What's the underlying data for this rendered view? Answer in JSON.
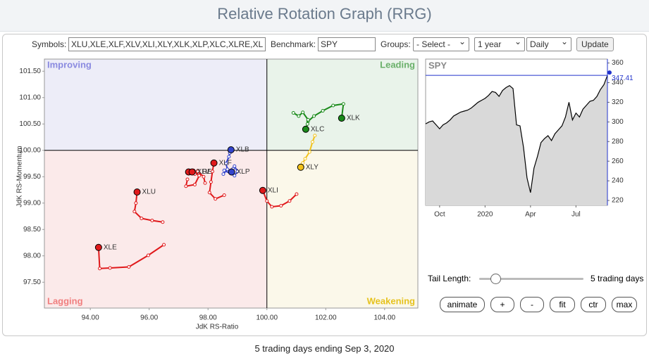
{
  "header": {
    "title": "Relative Rotation Graph (RRG)"
  },
  "toolbar": {
    "symbols_label": "Symbols:",
    "symbols": "XLU,XLE,XLF,XLV,XLI,XLY,XLK,XLP,XLC,XLRE,XL",
    "benchmark_label": "Benchmark:",
    "benchmark": "SPY",
    "groups_label": "Groups:",
    "groups": "- Select -",
    "period": "1 year",
    "interval": "Daily",
    "update": "Update"
  },
  "chart_data": [
    {
      "type": "rrg",
      "xlabel": "JdK RS-Ratio",
      "ylabel": "JdK RS-Momentum",
      "xlim": [
        92.44,
        105.13
      ],
      "ylim": [
        97.01,
        101.73
      ],
      "center": [
        100,
        100
      ],
      "xticks": [
        {
          "value": 94,
          "label": "94.00"
        },
        {
          "value": 96,
          "label": "96.00"
        },
        {
          "value": 98,
          "label": "98.00"
        },
        {
          "value": 100,
          "label": "100.00"
        },
        {
          "value": 102,
          "label": "102.00"
        },
        {
          "value": 104,
          "label": "104.00"
        }
      ],
      "yticks": [
        {
          "value": 97.5,
          "label": "97.50"
        },
        {
          "value": 98,
          "label": "98.00"
        },
        {
          "value": 98.5,
          "label": "98.50"
        },
        {
          "value": 99,
          "label": "99.00"
        },
        {
          "value": 99.5,
          "label": "99.50"
        },
        {
          "value": 100,
          "label": "100.00"
        },
        {
          "value": 100.5,
          "label": "100.50"
        },
        {
          "value": 101,
          "label": "101.00"
        },
        {
          "value": 101.5,
          "label": "101.50"
        }
      ],
      "quadrant_labels": [
        "Improving",
        "Leading",
        "Lagging",
        "Weakening"
      ],
      "quadrant_colors": [
        "#ededf8",
        "#e9f3ea",
        "#fbeaea",
        "#fbf8ea"
      ],
      "quadrant_label_colors": [
        "#8a8ae0",
        "#6ab06a",
        "#f07f7f",
        "#e6c21e"
      ],
      "series": [
        {
          "name": "XLK",
          "color": "#1a8a1a",
          "x": [
            101.4,
            101.6,
            101.9,
            102.25,
            102.6,
            102.54
          ],
          "values": [
            100.55,
            100.65,
            100.75,
            100.85,
            100.88,
            100.61
          ]
        },
        {
          "name": "XLC",
          "color": "#1a8a1a",
          "x": [
            100.9,
            101.08,
            101.22,
            101.4,
            101.38,
            101.32
          ],
          "values": [
            100.71,
            100.65,
            100.72,
            100.58,
            100.5,
            100.4
          ]
        },
        {
          "name": "XLY",
          "color": "#f2c21b",
          "x": [
            101.63,
            101.55,
            101.45,
            101.3,
            101.22,
            101.15
          ],
          "values": [
            100.28,
            100.16,
            99.97,
            99.84,
            99.76,
            99.68
          ]
        },
        {
          "name": "XLB",
          "color": "#3344cc",
          "x": [
            98.52,
            98.66,
            98.61,
            98.71,
            98.74,
            98.78
          ],
          "values": [
            99.55,
            99.64,
            99.75,
            99.88,
            99.95,
            100.01
          ]
        },
        {
          "name": "XLP",
          "color": "#3344cc",
          "x": [
            98.55,
            98.9,
            99.0,
            98.9,
            98.85,
            98.8
          ],
          "values": [
            99.62,
            99.52,
            99.6,
            99.7,
            99.65,
            99.59
          ]
        },
        {
          "name": "XLF",
          "color": "#e0191b",
          "x": [
            98.55,
            98.25,
            98.05,
            98.1,
            98.15,
            98.2
          ],
          "values": [
            99.15,
            99.08,
            99.2,
            99.4,
            99.6,
            99.76
          ]
        },
        {
          "name": "XLRE",
          "color": "#e0191b",
          "x": [
            97.3,
            97.25,
            97.55,
            97.7,
            97.5,
            97.34
          ],
          "values": [
            99.45,
            99.32,
            99.35,
            99.52,
            99.6,
            99.59
          ]
        },
        {
          "name": "XLV",
          "color": "#e0191b",
          "x": [
            97.9,
            97.85,
            97.65,
            97.55,
            97.5,
            97.46
          ],
          "values": [
            99.38,
            99.5,
            99.6,
            99.55,
            99.62,
            99.59
          ]
        },
        {
          "name": "XLI",
          "color": "#e0191b",
          "x": [
            101.01,
            100.77,
            100.48,
            100.17,
            100.0,
            99.86
          ],
          "values": [
            99.17,
            99.04,
            98.95,
            98.93,
            99.04,
            99.24
          ]
        },
        {
          "name": "XLU",
          "color": "#e0191b",
          "x": [
            96.46,
            96.1,
            95.74,
            95.5,
            95.55,
            95.59
          ],
          "values": [
            98.64,
            98.67,
            98.71,
            98.84,
            99.0,
            99.21
          ]
        },
        {
          "name": "XLE",
          "color": "#e0191b",
          "x": [
            96.5,
            95.97,
            95.31,
            94.67,
            94.32,
            94.28
          ],
          "values": [
            98.21,
            98.01,
            97.79,
            97.77,
            97.76,
            98.16
          ]
        }
      ]
    },
    {
      "type": "area",
      "title": "SPY",
      "color": "#000000",
      "fill": "#d9d9d9",
      "marker_color": "#2233cc",
      "xlim": [
        0,
        52
      ],
      "ylim": [
        215,
        364
      ],
      "xticks": [
        {
          "value": 4,
          "label": "Oct"
        },
        {
          "value": 17,
          "label": "2020"
        },
        {
          "value": 30,
          "label": "Apr"
        },
        {
          "value": 43,
          "label": "Jul"
        }
      ],
      "yticks": [
        220,
        240,
        260,
        280,
        300,
        320,
        340,
        360
      ],
      "values": [
        298,
        300,
        301,
        297,
        293,
        297,
        299,
        302,
        306,
        308,
        310,
        311,
        312,
        314,
        317,
        320,
        322,
        324,
        327,
        331,
        330,
        326,
        332,
        335,
        337,
        334,
        297,
        296,
        274,
        243,
        228,
        253,
        265,
        279,
        283,
        286,
        281,
        288,
        292,
        296,
        305,
        320,
        302,
        309,
        305,
        313,
        317,
        321,
        322,
        326,
        333,
        338,
        347.41
      ]
    }
  ],
  "controls": {
    "tail_length_label": "Tail Length:",
    "tail_length_value": "5 trading days",
    "buttons": [
      "animate",
      "+",
      "-",
      "fit",
      "ctr",
      "max"
    ]
  },
  "footer": "5 trading days ending Sep 3, 2020"
}
